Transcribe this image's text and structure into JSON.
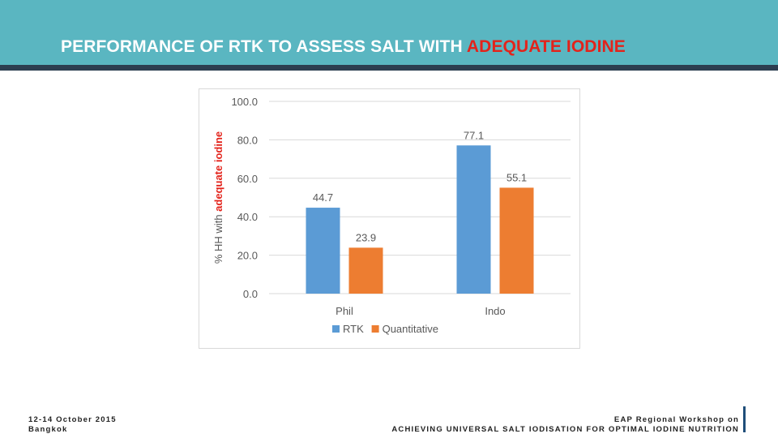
{
  "header": {
    "title_main": "PERFORMANCE OF RTK TO ASSESS SALT WITH ",
    "title_highlight": "ADEQUATE IODINE",
    "bg_color": "#5ab6c1",
    "highlight_color": "#e3231b"
  },
  "footer": {
    "date": "12-14 October 2015",
    "place": "Bangkok",
    "event": "EAP Regional Workshop on",
    "event_title": "ACHIEVING UNIVERSAL SALT IODISATION FOR OPTIMAL IODINE NUTRITION"
  },
  "chart_data": {
    "type": "bar",
    "categories": [
      "Phil",
      "Indo"
    ],
    "series": [
      {
        "name": "RTK",
        "values": [
          44.7,
          77.1
        ],
        "color": "#5b9bd5"
      },
      {
        "name": "Quantitative",
        "values": [
          23.9,
          55.1
        ],
        "color": "#ed7d31"
      }
    ],
    "ylabel_prefix": "% HH with ",
    "ylabel_highlight": "adequate iodine",
    "ylim": [
      0,
      100
    ],
    "yticks": [
      "0.0",
      "20.0",
      "40.0",
      "60.0",
      "80.0",
      "100.0"
    ],
    "data_labels": [
      [
        "44.7",
        "77.1"
      ],
      [
        "23.9",
        "55.1"
      ]
    ],
    "grid": true,
    "legend_position": "bottom"
  }
}
